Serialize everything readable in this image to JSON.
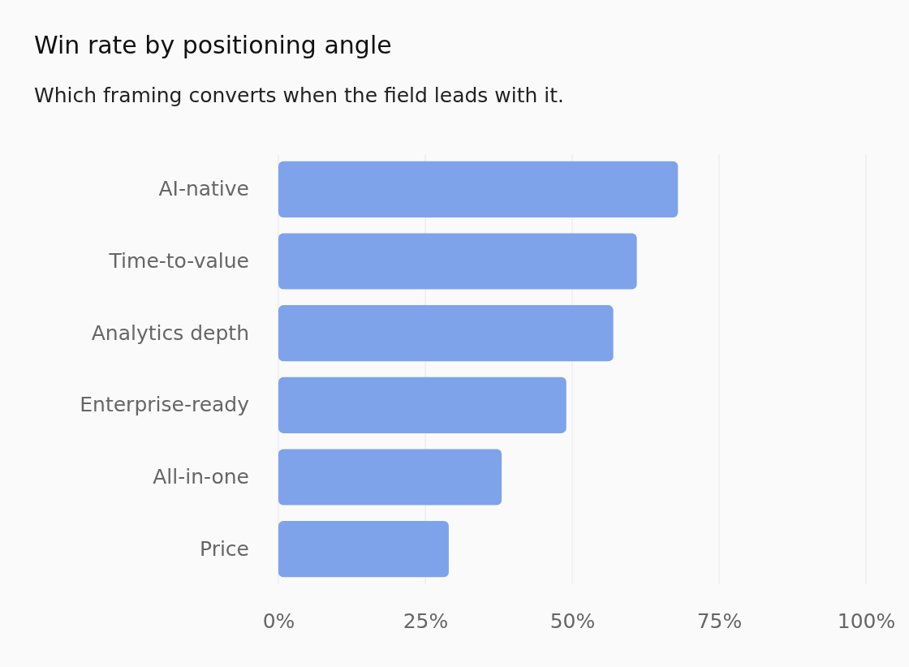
{
  "chart_data": {
    "type": "bar",
    "orientation": "horizontal",
    "title": "Win rate by positioning angle",
    "subtitle": "Which framing converts when the field leads with it.",
    "categories": [
      "AI-native",
      "Time-to-value",
      "Analytics depth",
      "Enterprise-ready",
      "All-in-one",
      "Price"
    ],
    "values": [
      68,
      61,
      57,
      49,
      38,
      29
    ],
    "color": "#7ea3eb",
    "xlim": [
      0,
      100
    ],
    "xticks": [
      {
        "value": 0,
        "label": "0%"
      },
      {
        "value": 25,
        "label": "25%"
      },
      {
        "value": 50,
        "label": "50%"
      },
      {
        "value": 75,
        "label": "75%"
      },
      {
        "value": 100,
        "label": "100%"
      }
    ],
    "grid": "x"
  }
}
